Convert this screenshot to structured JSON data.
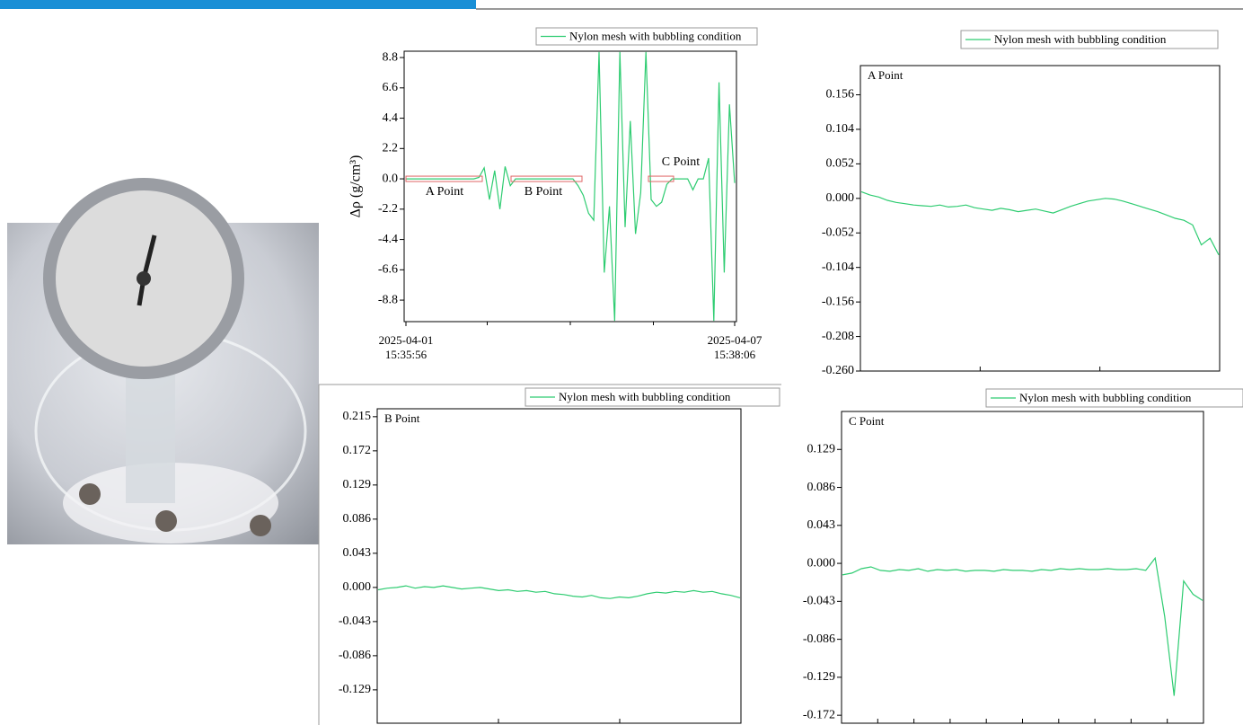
{
  "chart_data": [
    {
      "type": "line",
      "y_label": "Δρ (g/cm³)",
      "categories": [
        "2025-04-01\n15:35:56",
        null,
        null,
        null,
        null,
        null,
        null,
        null,
        null,
        null,
        null,
        null,
        null,
        null,
        null,
        null,
        null,
        null,
        null,
        null,
        null,
        null,
        null,
        null,
        null,
        null,
        null,
        null,
        null,
        null,
        null,
        null,
        null,
        null,
        null,
        null,
        null,
        null,
        null,
        null,
        null,
        null,
        null,
        null,
        null,
        null,
        null,
        null,
        null,
        null,
        null,
        null,
        null,
        null,
        null,
        null,
        null,
        null,
        null,
        null,
        null,
        null,
        null,
        "2025-04-07\n15:38:06"
      ],
      "series": [
        {
          "name": "Nylon mesh with bubbling condition",
          "color": "#2ecc71",
          "values": [
            0,
            0,
            0,
            0,
            0,
            0,
            0,
            0,
            0,
            0,
            0,
            0,
            0,
            0,
            0.1,
            0.8,
            -1.5,
            0.6,
            -2.2,
            0.9,
            -0.5,
            0,
            0,
            0,
            0,
            0,
            0,
            0,
            0,
            0,
            0,
            0,
            0,
            -0.5,
            -1.2,
            -2.5,
            -3.0,
            9.2,
            -6.8,
            -2.0,
            -10.3,
            9.2,
            -3.5,
            4.2,
            -4.0,
            -1.0,
            9.2,
            -1.5,
            -2.0,
            -1.7,
            -0.4,
            0,
            0,
            0,
            0,
            -0.8,
            0,
            0,
            1.5,
            -10.3,
            7.0,
            -6.8,
            5.4,
            -0.3
          ]
        }
      ],
      "annotations": [
        "A Point",
        "B Point",
        "C Point"
      ],
      "ylim": [
        -10.36,
        9.26
      ],
      "yticks": [
        8.8,
        6.6,
        4.4,
        2.2,
        {
          "value": 0,
          "label": "0.0"
        },
        -2.2,
        -4.4,
        -6.6,
        -8.8
      ]
    },
    {
      "type": "line",
      "label": "A Point",
      "series": [
        {
          "name": "Nylon mesh with bubbling condition",
          "color": "#2ecc71",
          "values": [
            0.01,
            0.005,
            0.002,
            -0.003,
            -0.006,
            -0.008,
            -0.01,
            -0.011,
            -0.012,
            -0.01,
            -0.013,
            -0.012,
            -0.01,
            -0.014,
            -0.016,
            -0.018,
            -0.015,
            -0.017,
            -0.02,
            -0.018,
            -0.016,
            -0.019,
            -0.022,
            -0.017,
            -0.012,
            -0.008,
            -0.004,
            -0.002,
            0.0,
            -0.001,
            -0.004,
            -0.008,
            -0.012,
            -0.016,
            -0.02,
            -0.025,
            -0.03,
            -0.033,
            -0.04,
            -0.07,
            -0.06,
            -0.085
          ]
        }
      ],
      "ylim": [
        -0.26,
        0.2
      ],
      "yticks": [
        0.156,
        0.104,
        0.052,
        {
          "value": 0,
          "label": "0.000"
        },
        -0.052,
        -0.104,
        -0.156,
        -0.208,
        {
          "value": -0.26,
          "label": "-0.260"
        }
      ]
    },
    {
      "type": "line",
      "label": "B Point",
      "series": [
        {
          "name": "Nylon mesh with bubbling condition",
          "color": "#2ecc71",
          "values": [
            -0.003,
            -0.001,
            0.0,
            0.002,
            -0.001,
            0.001,
            0.0,
            0.002,
            0.0,
            -0.002,
            -0.001,
            0.0,
            -0.002,
            -0.004,
            -0.003,
            -0.005,
            -0.004,
            -0.006,
            -0.005,
            -0.008,
            -0.009,
            -0.011,
            -0.012,
            -0.01,
            -0.013,
            -0.014,
            -0.012,
            -0.013,
            -0.011,
            -0.008,
            -0.006,
            -0.007,
            -0.005,
            -0.006,
            -0.004,
            -0.006,
            -0.005,
            -0.008,
            -0.01,
            -0.013
          ]
        }
      ],
      "ylim": [
        -0.171,
        0.225
      ],
      "yticks": [
        0.215,
        0.172,
        0.129,
        0.086,
        0.043,
        {
          "value": 0,
          "label": "0.000"
        },
        -0.043,
        -0.086,
        -0.129
      ]
    },
    {
      "type": "line",
      "label": "C Point",
      "series": [
        {
          "name": "Nylon mesh with bubbling condition",
          "color": "#2ecc71",
          "values": [
            -0.013,
            -0.011,
            -0.006,
            -0.004,
            -0.008,
            -0.009,
            -0.007,
            -0.008,
            -0.006,
            -0.009,
            -0.007,
            -0.008,
            -0.007,
            -0.009,
            -0.008,
            -0.008,
            -0.009,
            -0.007,
            -0.008,
            -0.008,
            -0.009,
            -0.007,
            -0.008,
            -0.006,
            -0.007,
            -0.006,
            -0.007,
            -0.007,
            -0.006,
            -0.007,
            -0.007,
            -0.006,
            -0.008,
            0.006,
            -0.06,
            -0.15,
            -0.02,
            -0.035,
            -0.042
          ]
        }
      ],
      "ylim": [
        -0.181,
        0.172
      ],
      "yticks": [
        0.129,
        0.086,
        0.043,
        {
          "value": 0,
          "label": "0.000"
        },
        -0.043,
        -0.086,
        -0.129,
        -0.172
      ]
    }
  ]
}
